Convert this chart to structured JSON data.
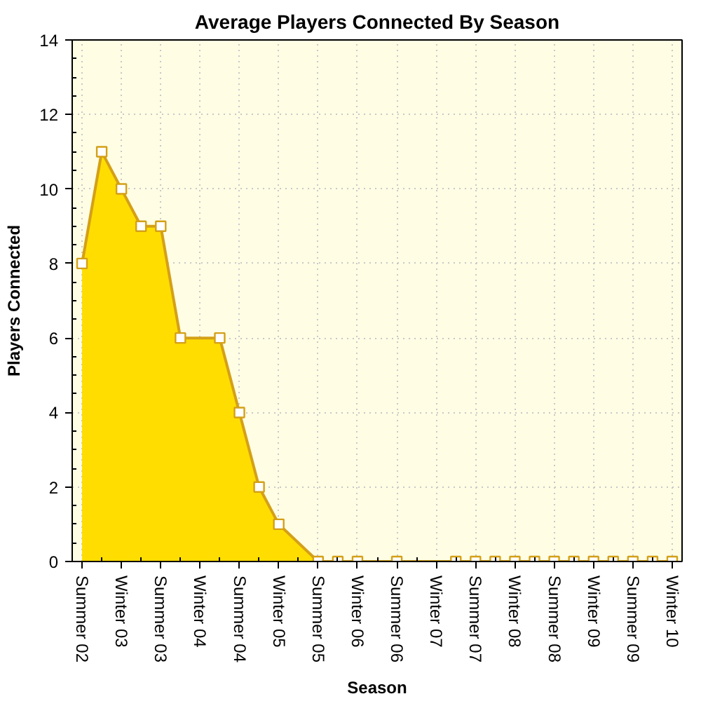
{
  "chart_data": {
    "type": "area",
    "title": "Average Players Connected By Season",
    "xlabel": "Season",
    "ylabel": "Players Connected",
    "categories": [
      "Summer 02",
      null,
      "Winter 03",
      null,
      "Summer 03",
      null,
      "Winter 04",
      null,
      "Summer 04",
      null,
      "Winter 05",
      null,
      "Summer 05",
      null,
      "Winter 06",
      null,
      "Summer 06",
      null,
      "Winter 07",
      null,
      "Summer 07",
      null,
      "Winter 08",
      null,
      "Summer 08",
      null,
      "Winter 09",
      null,
      "Summer 09",
      null,
      "Winter 10"
    ],
    "series": [
      {
        "color": "#ffdd00",
        "values": [
          8,
          11,
          10,
          9,
          9,
          6,
          null,
          6,
          4,
          2,
          1,
          null,
          0,
          0,
          0,
          null,
          0,
          null,
          null,
          0,
          0,
          0,
          0,
          0,
          0,
          0,
          0,
          0,
          0,
          0,
          0
        ]
      }
    ],
    "ylim": [
      0,
      14
    ],
    "yticks": [
      0,
      2,
      4,
      6,
      8,
      10,
      12,
      14
    ],
    "grid": true,
    "marker": "square"
  }
}
